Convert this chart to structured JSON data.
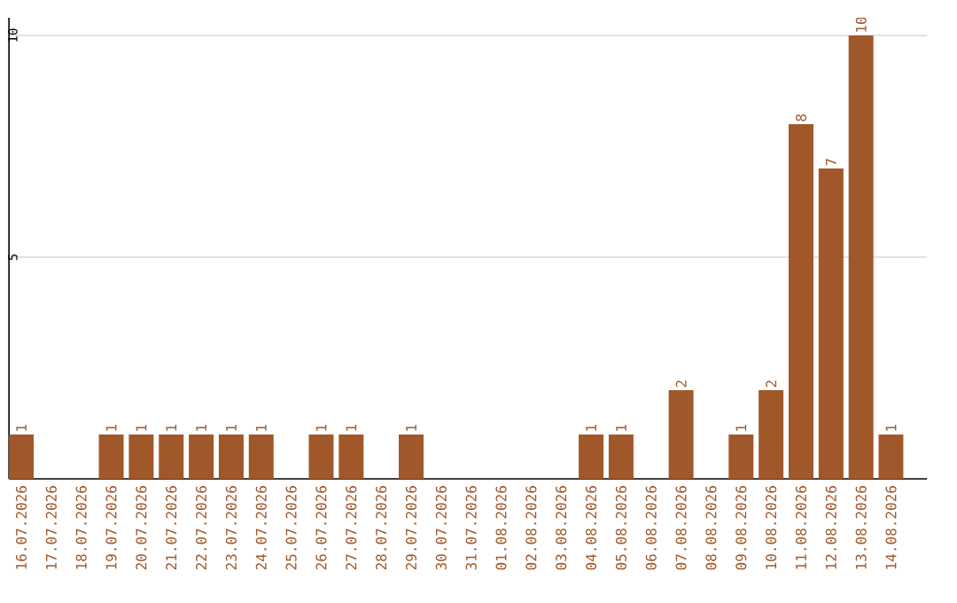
{
  "chart_data": {
    "type": "bar",
    "categories": [
      "16.07.2026",
      "17.07.2026",
      "18.07.2026",
      "19.07.2026",
      "20.07.2026",
      "21.07.2026",
      "22.07.2026",
      "23.07.2026",
      "24.07.2026",
      "25.07.2026",
      "26.07.2026",
      "27.07.2026",
      "28.07.2026",
      "29.07.2026",
      "30.07.2026",
      "31.07.2026",
      "01.08.2026",
      "02.08.2026",
      "03.08.2026",
      "04.08.2026",
      "05.08.2026",
      "06.08.2026",
      "07.08.2026",
      "08.08.2026",
      "09.08.2026",
      "10.08.2026",
      "11.08.2026",
      "12.08.2026",
      "13.08.2026",
      "14.08.2026"
    ],
    "values": [
      1,
      0,
      0,
      1,
      1,
      1,
      1,
      1,
      1,
      0,
      1,
      1,
      0,
      1,
      0,
      0,
      0,
      0,
      0,
      1,
      1,
      0,
      2,
      0,
      1,
      2,
      8,
      7,
      10,
      1
    ],
    "value_labels": [
      "1",
      null,
      null,
      "1",
      "1",
      "1",
      "1",
      "1",
      "1",
      null,
      "1",
      "1",
      null,
      "1",
      null,
      null,
      null,
      null,
      null,
      "1",
      "1",
      null,
      "2",
      null,
      "1",
      "2",
      "8",
      "7",
      "10",
      "1"
    ],
    "color": "#a0582a",
    "ylim": [
      0,
      10.4
    ],
    "yticks": [
      5,
      10
    ],
    "grid": "y"
  }
}
